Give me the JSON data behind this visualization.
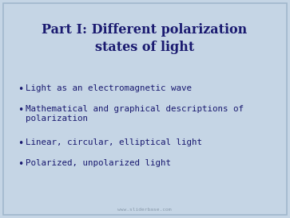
{
  "title_line1": "Part I: Different polarization",
  "title_line2": "states of light",
  "bullet_items": [
    "Light as an electromagnetic wave",
    "Mathematical and graphical descriptions of\npolarization",
    "Linear, circular, elliptical light",
    "Polarized, unpolarized light"
  ],
  "bg_color": "#c5d5e5",
  "title_color": "#1a1a70",
  "bullet_color": "#1a1a70",
  "watermark": "www.sliderbase.com",
  "watermark_color": "#8899aa",
  "title_fontsize": 11.5,
  "bullet_fontsize": 7.8,
  "watermark_fontsize": 4.5,
  "border_color": "#a0b8cc"
}
